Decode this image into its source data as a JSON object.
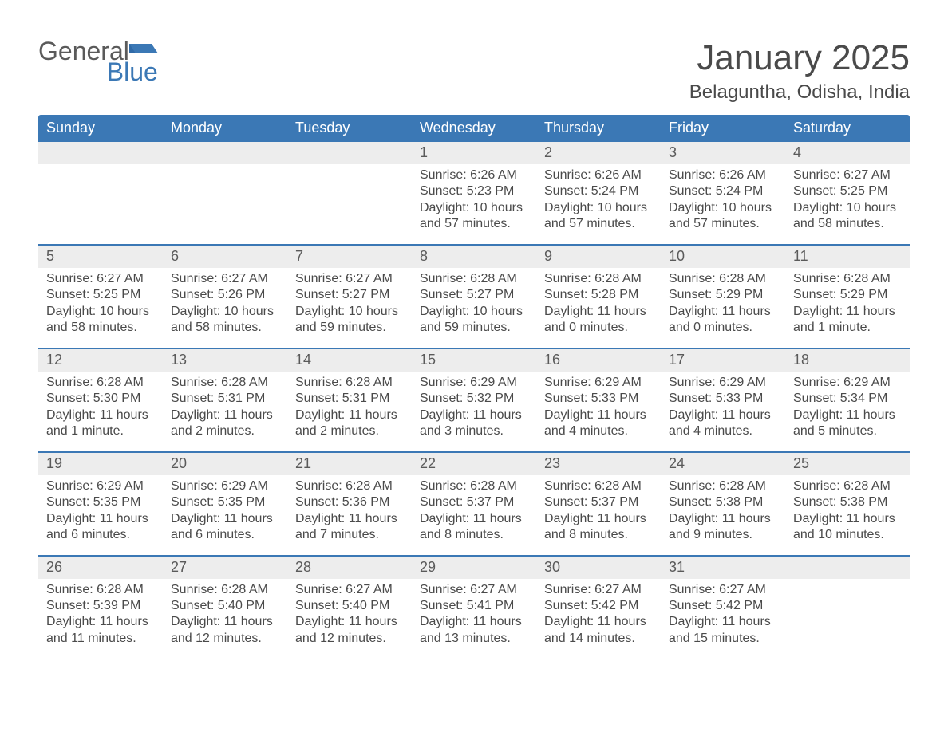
{
  "logo": {
    "word1": "General",
    "word2": "Blue"
  },
  "title": "January 2025",
  "location": "Belaguntha, Odisha, India",
  "colors": {
    "header_bg": "#3b78b5",
    "header_text": "#ffffff",
    "daynum_bg": "#ededed",
    "text": "#4a4a4a",
    "week_border": "#3b78b5",
    "page_bg": "#ffffff",
    "logo_blue": "#3b78b5",
    "logo_gray": "#5a5a5a"
  },
  "typography": {
    "title_fontsize": 44,
    "location_fontsize": 24,
    "dow_fontsize": 18,
    "daynum_fontsize": 18,
    "body_fontsize": 16,
    "font_family": "Arial"
  },
  "days_of_week": [
    "Sunday",
    "Monday",
    "Tuesday",
    "Wednesday",
    "Thursday",
    "Friday",
    "Saturday"
  ],
  "labels": {
    "sunrise": "Sunrise: ",
    "sunset": "Sunset: ",
    "daylight": "Daylight: "
  },
  "weeks": [
    [
      null,
      null,
      null,
      {
        "n": "1",
        "sunrise": "6:26 AM",
        "sunset": "5:23 PM",
        "daylight": "10 hours and 57 minutes."
      },
      {
        "n": "2",
        "sunrise": "6:26 AM",
        "sunset": "5:24 PM",
        "daylight": "10 hours and 57 minutes."
      },
      {
        "n": "3",
        "sunrise": "6:26 AM",
        "sunset": "5:24 PM",
        "daylight": "10 hours and 57 minutes."
      },
      {
        "n": "4",
        "sunrise": "6:27 AM",
        "sunset": "5:25 PM",
        "daylight": "10 hours and 58 minutes."
      }
    ],
    [
      {
        "n": "5",
        "sunrise": "6:27 AM",
        "sunset": "5:25 PM",
        "daylight": "10 hours and 58 minutes."
      },
      {
        "n": "6",
        "sunrise": "6:27 AM",
        "sunset": "5:26 PM",
        "daylight": "10 hours and 58 minutes."
      },
      {
        "n": "7",
        "sunrise": "6:27 AM",
        "sunset": "5:27 PM",
        "daylight": "10 hours and 59 minutes."
      },
      {
        "n": "8",
        "sunrise": "6:28 AM",
        "sunset": "5:27 PM",
        "daylight": "10 hours and 59 minutes."
      },
      {
        "n": "9",
        "sunrise": "6:28 AM",
        "sunset": "5:28 PM",
        "daylight": "11 hours and 0 minutes."
      },
      {
        "n": "10",
        "sunrise": "6:28 AM",
        "sunset": "5:29 PM",
        "daylight": "11 hours and 0 minutes."
      },
      {
        "n": "11",
        "sunrise": "6:28 AM",
        "sunset": "5:29 PM",
        "daylight": "11 hours and 1 minute."
      }
    ],
    [
      {
        "n": "12",
        "sunrise": "6:28 AM",
        "sunset": "5:30 PM",
        "daylight": "11 hours and 1 minute."
      },
      {
        "n": "13",
        "sunrise": "6:28 AM",
        "sunset": "5:31 PM",
        "daylight": "11 hours and 2 minutes."
      },
      {
        "n": "14",
        "sunrise": "6:28 AM",
        "sunset": "5:31 PM",
        "daylight": "11 hours and 2 minutes."
      },
      {
        "n": "15",
        "sunrise": "6:29 AM",
        "sunset": "5:32 PM",
        "daylight": "11 hours and 3 minutes."
      },
      {
        "n": "16",
        "sunrise": "6:29 AM",
        "sunset": "5:33 PM",
        "daylight": "11 hours and 4 minutes."
      },
      {
        "n": "17",
        "sunrise": "6:29 AM",
        "sunset": "5:33 PM",
        "daylight": "11 hours and 4 minutes."
      },
      {
        "n": "18",
        "sunrise": "6:29 AM",
        "sunset": "5:34 PM",
        "daylight": "11 hours and 5 minutes."
      }
    ],
    [
      {
        "n": "19",
        "sunrise": "6:29 AM",
        "sunset": "5:35 PM",
        "daylight": "11 hours and 6 minutes."
      },
      {
        "n": "20",
        "sunrise": "6:29 AM",
        "sunset": "5:35 PM",
        "daylight": "11 hours and 6 minutes."
      },
      {
        "n": "21",
        "sunrise": "6:28 AM",
        "sunset": "5:36 PM",
        "daylight": "11 hours and 7 minutes."
      },
      {
        "n": "22",
        "sunrise": "6:28 AM",
        "sunset": "5:37 PM",
        "daylight": "11 hours and 8 minutes."
      },
      {
        "n": "23",
        "sunrise": "6:28 AM",
        "sunset": "5:37 PM",
        "daylight": "11 hours and 8 minutes."
      },
      {
        "n": "24",
        "sunrise": "6:28 AM",
        "sunset": "5:38 PM",
        "daylight": "11 hours and 9 minutes."
      },
      {
        "n": "25",
        "sunrise": "6:28 AM",
        "sunset": "5:38 PM",
        "daylight": "11 hours and 10 minutes."
      }
    ],
    [
      {
        "n": "26",
        "sunrise": "6:28 AM",
        "sunset": "5:39 PM",
        "daylight": "11 hours and 11 minutes."
      },
      {
        "n": "27",
        "sunrise": "6:28 AM",
        "sunset": "5:40 PM",
        "daylight": "11 hours and 12 minutes."
      },
      {
        "n": "28",
        "sunrise": "6:27 AM",
        "sunset": "5:40 PM",
        "daylight": "11 hours and 12 minutes."
      },
      {
        "n": "29",
        "sunrise": "6:27 AM",
        "sunset": "5:41 PM",
        "daylight": "11 hours and 13 minutes."
      },
      {
        "n": "30",
        "sunrise": "6:27 AM",
        "sunset": "5:42 PM",
        "daylight": "11 hours and 14 minutes."
      },
      {
        "n": "31",
        "sunrise": "6:27 AM",
        "sunset": "5:42 PM",
        "daylight": "11 hours and 15 minutes."
      },
      null
    ]
  ]
}
